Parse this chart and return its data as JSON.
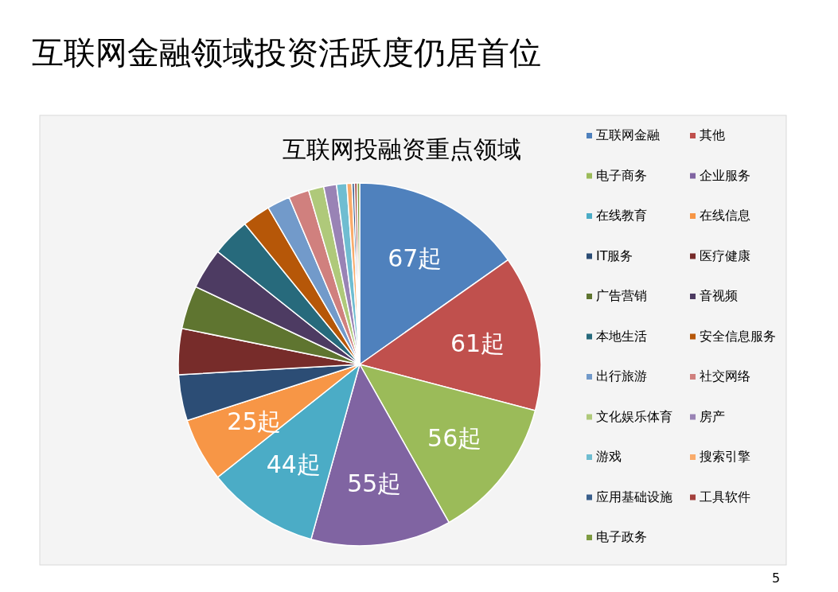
{
  "chart_data": {
    "type": "pie",
    "title": "互联网金融领域投资活跃度仍居首位",
    "subtitle": "互联网投融资重点领域",
    "categories": [
      "互联网金融",
      "其他",
      "电子商务",
      "企业服务",
      "在线教育",
      "在线信息",
      "IT服务",
      "医疗健康",
      "广告营销",
      "音视频",
      "本地生活",
      "安全信息服务",
      "出行旅游",
      "社交网络",
      "文化娱乐体育",
      "房产",
      "游戏",
      "搜索引擎",
      "应用基础设施",
      "工具软件",
      "电子政务"
    ],
    "values": [
      67,
      61,
      56,
      55,
      44,
      25,
      18,
      18,
      17,
      16,
      15,
      11,
      9,
      8,
      6,
      5,
      4,
      2,
      1,
      1,
      1
    ],
    "colors": [
      "#4f81bd",
      "#c0504d",
      "#9bbb59",
      "#8064a2",
      "#4bacc6",
      "#f79646",
      "#2c4d75",
      "#772c2a",
      "#5f7530",
      "#4d3b62",
      "#276a7c",
      "#b65708",
      "#729aca",
      "#d0807e",
      "#afc97a",
      "#9983b5",
      "#6fbdd1",
      "#f9ab6b",
      "#3a5f8c",
      "#a3403c",
      "#7e9b42"
    ],
    "value_labels": [
      "67起",
      "61起",
      "56起",
      "55起",
      "44起",
      "25起",
      null,
      null,
      null,
      null,
      null,
      null,
      null,
      null,
      null,
      null,
      null,
      null,
      null,
      null,
      null
    ],
    "legend": "right",
    "annotations": [
      "5"
    ]
  }
}
